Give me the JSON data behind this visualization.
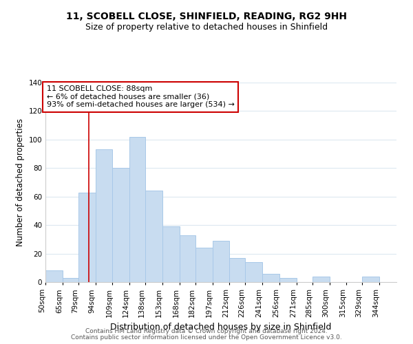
{
  "title": "11, SCOBELL CLOSE, SHINFIELD, READING, RG2 9HH",
  "subtitle": "Size of property relative to detached houses in Shinfield",
  "xlabel": "Distribution of detached houses by size in Shinfield",
  "ylabel": "Number of detached properties",
  "bar_color": "#c8dcf0",
  "bar_edge_color": "#a8c8e8",
  "background_color": "#ffffff",
  "grid_color": "#dce8f0",
  "vline_x": 88,
  "vline_color": "#cc0000",
  "annotation_text": "11 SCOBELL CLOSE: 88sqm\n← 6% of detached houses are smaller (36)\n93% of semi-detached houses are larger (534) →",
  "annotation_box_color": "#ffffff",
  "annotation_box_edge": "#cc0000",
  "bins": [
    50,
    65,
    79,
    94,
    109,
    124,
    138,
    153,
    168,
    182,
    197,
    212,
    226,
    241,
    256,
    271,
    285,
    300,
    315,
    329,
    344
  ],
  "heights": [
    8,
    3,
    63,
    93,
    80,
    102,
    64,
    39,
    33,
    24,
    29,
    17,
    14,
    6,
    3,
    0,
    4,
    0,
    0,
    4
  ],
  "ylim": [
    0,
    140
  ],
  "yticks": [
    0,
    20,
    40,
    60,
    80,
    100,
    120,
    140
  ],
  "footer_line1": "Contains HM Land Registry data © Crown copyright and database right 2024.",
  "footer_line2": "Contains public sector information licensed under the Open Government Licence v3.0.",
  "title_fontsize": 10,
  "subtitle_fontsize": 9,
  "xlabel_fontsize": 9,
  "ylabel_fontsize": 8.5,
  "tick_fontsize": 7.5,
  "footer_fontsize": 6.5,
  "ann_fontsize": 8
}
